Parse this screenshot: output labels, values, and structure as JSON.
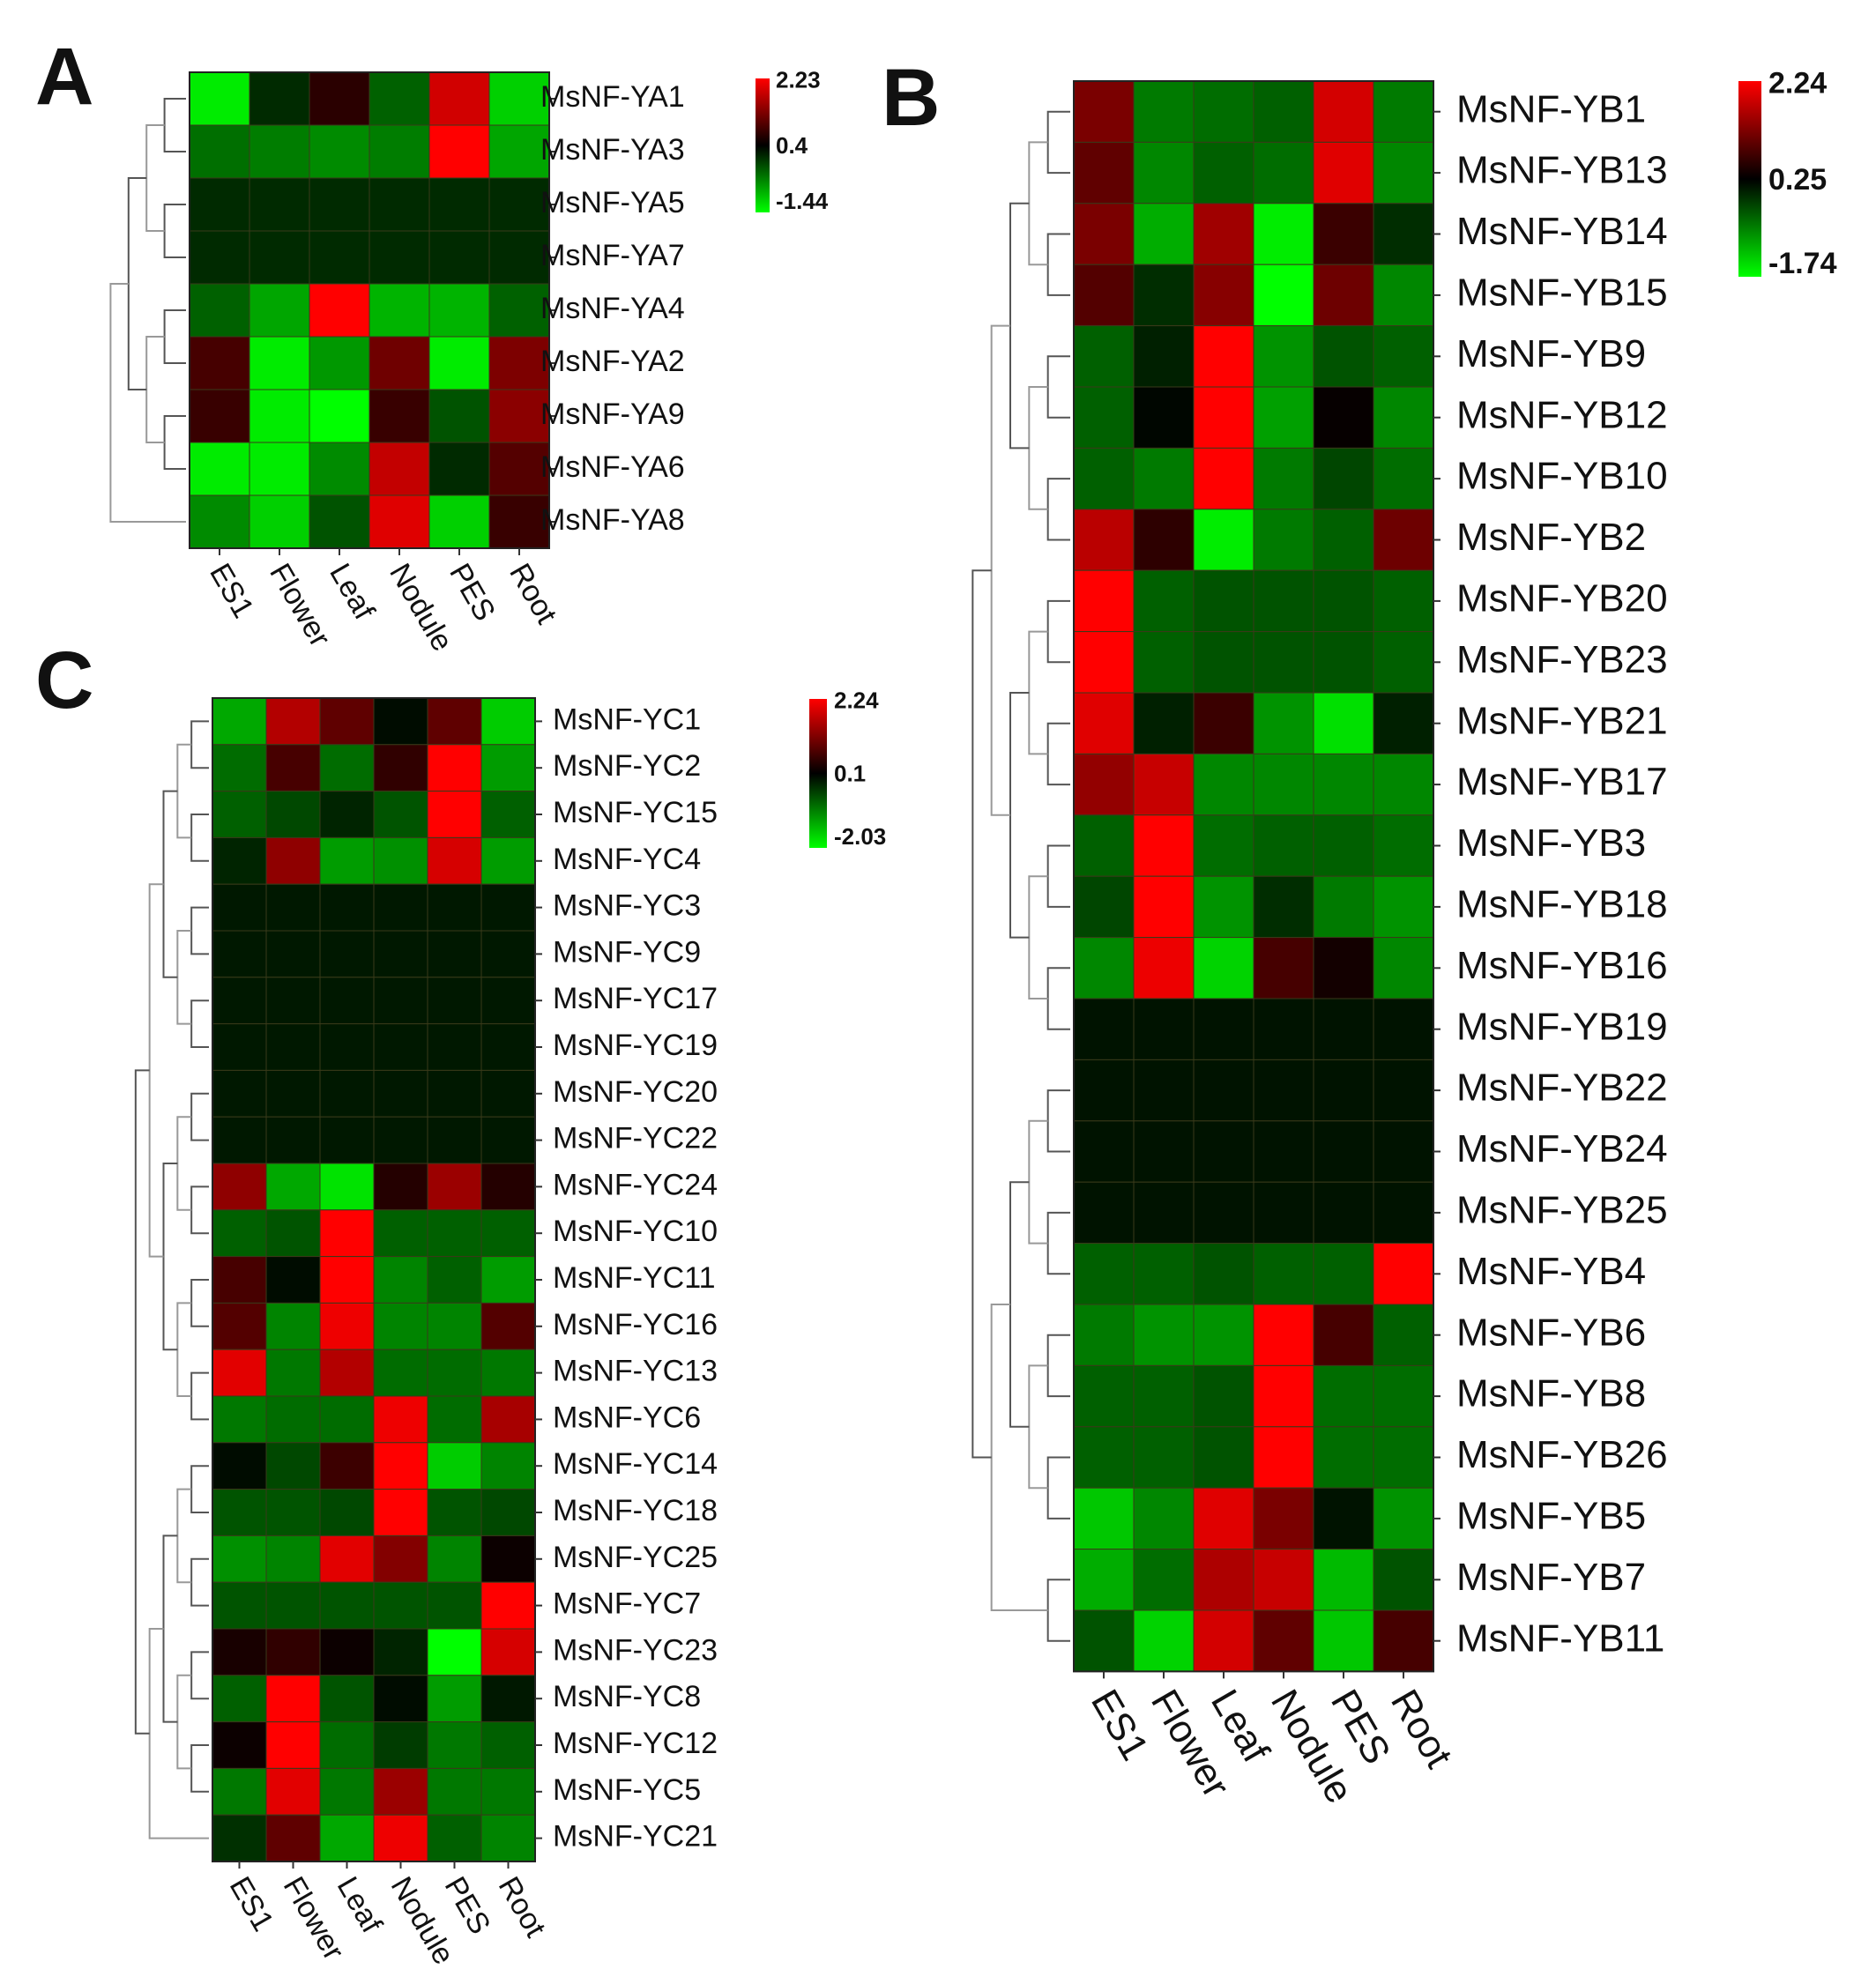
{
  "columns": [
    "ES1",
    "Flower",
    "Leaf",
    "Nodule",
    "PES",
    "Root"
  ],
  "colors": {
    "high": "#ff0000",
    "mid": "#000000",
    "low": "#00ff00"
  },
  "chart_data": [
    {
      "type": "heatmap",
      "panel": "A",
      "x": [
        "ES1",
        "Flower",
        "Leaf",
        "Nodule",
        "PES",
        "Root"
      ],
      "y": [
        "MsNF-YA1",
        "MsNF-YA3",
        "MsNF-YA5",
        "MsNF-YA7",
        "MsNF-YA4",
        "MsNF-YA2",
        "MsNF-YA9",
        "MsNF-YA6",
        "MsNF-YA8"
      ],
      "legend": {
        "max": 2.23,
        "mid": 0.4,
        "min": -1.44,
        "max_label": "2.23",
        "mid_label": "0.4",
        "min_label": "-1.44"
      },
      "values": [
        [
          -1.3,
          0.1,
          0.7,
          -0.3,
          1.9,
          -1.1
        ],
        [
          -0.4,
          -0.5,
          -0.6,
          -0.5,
          2.23,
          -0.8
        ],
        [
          0.1,
          0.1,
          0.1,
          0.1,
          0.1,
          0.1
        ],
        [
          0.1,
          0.1,
          0.1,
          0.1,
          0.1,
          0.1
        ],
        [
          -0.3,
          -0.8,
          2.23,
          -0.9,
          -0.9,
          -0.3
        ],
        [
          0.9,
          -1.3,
          -0.7,
          1.2,
          -1.3,
          1.3
        ],
        [
          0.8,
          -1.3,
          -1.44,
          0.8,
          -0.2,
          1.4
        ],
        [
          -1.3,
          -1.3,
          -0.6,
          1.8,
          0.1,
          1.0
        ],
        [
          -0.6,
          -1.1,
          -0.2,
          2.0,
          -1.1,
          0.8
        ]
      ]
    },
    {
      "type": "heatmap",
      "panel": "B",
      "x": [
        "ES1",
        "Flower",
        "Leaf",
        "Nodule",
        "PES",
        "Root"
      ],
      "y": [
        "MsNF-YB1",
        "MsNF-YB13",
        "MsNF-YB14",
        "MsNF-YB15",
        "MsNF-YB9",
        "MsNF-YB12",
        "MsNF-YB10",
        "MsNF-YB2",
        "MsNF-YB20",
        "MsNF-YB23",
        "MsNF-YB21",
        "MsNF-YB17",
        "MsNF-YB3",
        "MsNF-YB18",
        "MsNF-YB16",
        "MsNF-YB19",
        "MsNF-YB22",
        "MsNF-YB24",
        "MsNF-YB25",
        "MsNF-YB4",
        "MsNF-YB6",
        "MsNF-YB8",
        "MsNF-YB26",
        "MsNF-YB5",
        "MsNF-YB7",
        "MsNF-YB11"
      ],
      "legend": {
        "max": 2.24,
        "mid": 0.25,
        "min": -1.74,
        "max_label": "2.24",
        "mid_label": "0.25",
        "min_label": "-1.74"
      },
      "values": [
        [
          1.2,
          -0.7,
          -0.6,
          -0.5,
          1.9,
          -0.7
        ],
        [
          1.0,
          -0.8,
          -0.5,
          -0.6,
          2.0,
          -0.8
        ],
        [
          1.2,
          -1.1,
          1.5,
          -1.6,
          0.7,
          -0.1
        ],
        [
          0.9,
          -0.1,
          1.3,
          -1.74,
          1.1,
          -0.8
        ],
        [
          -0.5,
          0.0,
          2.24,
          -0.9,
          -0.4,
          -0.5
        ],
        [
          -0.5,
          0.2,
          2.24,
          -1.0,
          0.3,
          -0.8
        ],
        [
          -0.5,
          -0.7,
          2.24,
          -0.7,
          -0.3,
          -0.6
        ],
        [
          1.7,
          0.6,
          -1.6,
          -0.7,
          -0.5,
          1.1
        ],
        [
          2.24,
          -0.5,
          -0.4,
          -0.4,
          -0.4,
          -0.5
        ],
        [
          2.24,
          -0.5,
          -0.4,
          -0.4,
          -0.4,
          -0.5
        ],
        [
          2.0,
          0.0,
          0.7,
          -0.9,
          -1.5,
          0.0
        ],
        [
          1.4,
          1.8,
          -0.8,
          -0.8,
          -0.8,
          -0.8
        ],
        [
          -0.5,
          2.24,
          -0.6,
          -0.5,
          -0.5,
          -0.6
        ],
        [
          -0.3,
          2.24,
          -0.9,
          -0.1,
          -0.7,
          -0.9
        ],
        [
          -0.8,
          2.1,
          -1.4,
          0.8,
          0.4,
          -0.8
        ],
        [
          0.1,
          0.1,
          0.1,
          0.1,
          0.1,
          0.1
        ],
        [
          0.1,
          0.1,
          0.1,
          0.1,
          0.1,
          0.1
        ],
        [
          0.1,
          0.1,
          0.1,
          0.1,
          0.1,
          0.1
        ],
        [
          0.1,
          0.1,
          0.1,
          0.1,
          0.1,
          0.1
        ],
        [
          -0.5,
          -0.5,
          -0.4,
          -0.5,
          -0.5,
          2.24
        ],
        [
          -0.7,
          -0.9,
          -0.9,
          2.24,
          0.8,
          -0.5
        ],
        [
          -0.5,
          -0.5,
          -0.4,
          2.24,
          -0.6,
          -0.6
        ],
        [
          -0.5,
          -0.5,
          -0.4,
          2.24,
          -0.6,
          -0.6
        ],
        [
          -1.3,
          -0.8,
          2.0,
          1.2,
          0.1,
          -0.9
        ],
        [
          -1.1,
          -0.6,
          1.6,
          1.8,
          -1.2,
          -0.4
        ],
        [
          -0.4,
          -1.4,
          1.9,
          1.0,
          -1.3,
          0.8
        ]
      ]
    },
    {
      "type": "heatmap",
      "panel": "C",
      "x": [
        "ES1",
        "Flower",
        "Leaf",
        "Nodule",
        "PES",
        "Root"
      ],
      "y": [
        "MsNF-YC1",
        "MsNF-YC2",
        "MsNF-YC15",
        "MsNF-YC4",
        "MsNF-YC3",
        "MsNF-YC9",
        "MsNF-YC17",
        "MsNF-YC19",
        "MsNF-YC20",
        "MsNF-YC22",
        "MsNF-YC24",
        "MsNF-YC10",
        "MsNF-YC11",
        "MsNF-YC16",
        "MsNF-YC13",
        "MsNF-YC6",
        "MsNF-YC14",
        "MsNF-YC18",
        "MsNF-YC25",
        "MsNF-YC7",
        "MsNF-YC23",
        "MsNF-YC8",
        "MsNF-YC12",
        "MsNF-YC5",
        "MsNF-YC21"
      ],
      "legend": {
        "max": 2.24,
        "mid": 0.1,
        "min": -2.03,
        "max_label": "2.24",
        "mid_label": "0.1",
        "min_label": "-2.03"
      },
      "values": [
        [
          -1.3,
          1.6,
          0.9,
          0.0,
          0.9,
          -1.6
        ],
        [
          -0.8,
          0.7,
          -0.8,
          0.5,
          2.24,
          -1.2
        ],
        [
          -0.7,
          -0.5,
          -0.2,
          -0.6,
          2.24,
          -0.7
        ],
        [
          -0.2,
          1.3,
          -1.2,
          -1.1,
          1.9,
          -1.2
        ],
        [
          -0.1,
          -0.1,
          -0.1,
          -0.1,
          -0.1,
          -0.1
        ],
        [
          -0.1,
          -0.1,
          -0.1,
          -0.1,
          -0.1,
          -0.1
        ],
        [
          -0.1,
          -0.1,
          -0.1,
          -0.1,
          -0.1,
          -0.1
        ],
        [
          -0.1,
          -0.1,
          -0.1,
          -0.1,
          -0.1,
          -0.1
        ],
        [
          -0.1,
          -0.1,
          -0.1,
          -0.1,
          -0.1,
          -0.1
        ],
        [
          -0.1,
          -0.1,
          -0.1,
          -0.1,
          -0.1,
          -0.1
        ],
        [
          1.3,
          -1.3,
          -1.8,
          0.4,
          1.4,
          0.4
        ],
        [
          -0.7,
          -0.6,
          2.24,
          -0.7,
          -0.7,
          -0.7
        ],
        [
          0.7,
          0.0,
          2.24,
          -1.0,
          -0.7,
          -1.2
        ],
        [
          0.8,
          -1.0,
          2.1,
          -1.0,
          -1.0,
          0.8
        ],
        [
          2.0,
          -0.9,
          1.6,
          -0.8,
          -0.8,
          -0.9
        ],
        [
          -0.9,
          -0.8,
          -0.8,
          2.1,
          -0.8,
          1.5
        ],
        [
          0.0,
          -0.5,
          0.6,
          2.24,
          -1.6,
          -1.0
        ],
        [
          -0.6,
          -0.6,
          -0.5,
          2.24,
          -0.6,
          -0.5
        ],
        [
          -1.1,
          -1.0,
          2.0,
          1.2,
          -1.0,
          0.2
        ],
        [
          -0.6,
          -0.6,
          -0.6,
          -0.6,
          -0.6,
          2.24
        ],
        [
          0.3,
          0.5,
          0.2,
          -0.2,
          -2.03,
          1.9
        ],
        [
          -0.7,
          2.24,
          -0.6,
          0.0,
          -1.2,
          -0.1
        ],
        [
          0.2,
          2.24,
          -0.8,
          -0.4,
          -0.9,
          -0.7
        ],
        [
          -0.9,
          2.0,
          -0.9,
          1.4,
          -0.9,
          -0.9
        ],
        [
          -0.3,
          0.9,
          -1.3,
          2.1,
          -0.7,
          -1.0
        ]
      ]
    }
  ]
}
